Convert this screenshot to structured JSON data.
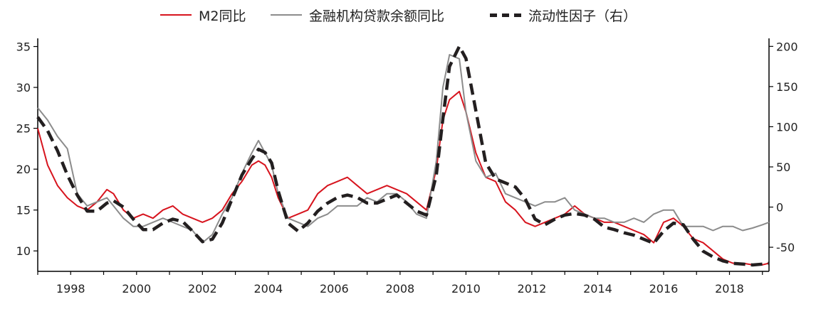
{
  "chart_data": {
    "type": "line",
    "title": "",
    "xlabel": "",
    "ylabel": "",
    "xlim": [
      1997.0,
      2019.2
    ],
    "ylim": [
      7.5,
      36
    ],
    "y2lim": [
      -80,
      210
    ],
    "x_ticks": [
      "1998",
      "2000",
      "2002",
      "2004",
      "2006",
      "2008",
      "2010",
      "2012",
      "2014",
      "2016",
      "2018"
    ],
    "y_ticks": [
      "10",
      "15",
      "20",
      "25",
      "30",
      "35"
    ],
    "y2_ticks": [
      "-50",
      "0",
      "50",
      "100",
      "150",
      "200"
    ],
    "legend_position": "top-center",
    "series": [
      {
        "name": "M2同比",
        "color": "#d7141e",
        "style": "solid",
        "axis": "left",
        "x": [
          1997.0,
          1997.3,
          1997.6,
          1997.9,
          1998.2,
          1998.5,
          1998.8,
          1999.1,
          1999.3,
          1999.6,
          1999.9,
          2000.2,
          2000.5,
          2000.8,
          2001.1,
          2001.4,
          2001.7,
          2002.0,
          2002.3,
          2002.6,
          2002.9,
          2003.2,
          2003.5,
          2003.7,
          2003.9,
          2004.1,
          2004.3,
          2004.6,
          2004.9,
          2005.2,
          2005.5,
          2005.8,
          2006.1,
          2006.4,
          2006.7,
          2007.0,
          2007.3,
          2007.6,
          2007.9,
          2008.2,
          2008.5,
          2008.8,
          2009.1,
          2009.3,
          2009.5,
          2009.8,
          2010.0,
          2010.3,
          2010.6,
          2010.9,
          2011.2,
          2011.5,
          2011.8,
          2012.1,
          2012.4,
          2012.7,
          2013.0,
          2013.3,
          2013.6,
          2013.9,
          2014.2,
          2014.5,
          2014.8,
          2015.1,
          2015.4,
          2015.7,
          2016.0,
          2016.3,
          2016.6,
          2016.9,
          2017.2,
          2017.5,
          2017.8,
          2018.1,
          2018.4,
          2018.7,
          2019.0,
          2019.2
        ],
        "y": [
          25.0,
          20.5,
          18.0,
          16.5,
          15.5,
          15.0,
          16.0,
          17.5,
          17.0,
          15.0,
          14.0,
          14.5,
          14.0,
          15.0,
          15.5,
          14.5,
          14.0,
          13.5,
          14.0,
          15.0,
          17.0,
          18.5,
          20.5,
          21.0,
          20.5,
          19.0,
          16.5,
          14.0,
          14.5,
          15.0,
          17.0,
          18.0,
          18.5,
          19.0,
          18.0,
          17.0,
          17.5,
          18.0,
          17.5,
          17.0,
          16.0,
          15.0,
          20.0,
          26.0,
          28.5,
          29.5,
          27.0,
          22.0,
          19.0,
          18.5,
          16.0,
          15.0,
          13.5,
          13.0,
          13.5,
          14.0,
          14.5,
          15.5,
          14.5,
          14.0,
          13.5,
          13.5,
          13.0,
          12.5,
          12.0,
          11.0,
          13.5,
          14.0,
          13.0,
          11.5,
          11.0,
          10.0,
          9.0,
          8.5,
          8.5,
          8.3,
          8.3,
          8.5
        ]
      },
      {
        "name": "金融机构贷款余额同比",
        "color": "#8c8c8c",
        "style": "solid",
        "axis": "left",
        "x": [
          1997.0,
          1997.3,
          1997.6,
          1997.9,
          1998.2,
          1998.5,
          1998.8,
          1999.1,
          1999.3,
          1999.6,
          1999.9,
          2000.2,
          2000.5,
          2000.8,
          2001.1,
          2001.4,
          2001.7,
          2002.0,
          2002.3,
          2002.6,
          2002.9,
          2003.2,
          2003.5,
          2003.7,
          2003.9,
          2004.1,
          2004.3,
          2004.6,
          2004.9,
          2005.2,
          2005.5,
          2005.8,
          2006.1,
          2006.4,
          2006.7,
          2007.0,
          2007.3,
          2007.6,
          2007.9,
          2008.2,
          2008.5,
          2008.8,
          2009.1,
          2009.3,
          2009.5,
          2009.8,
          2010.0,
          2010.3,
          2010.6,
          2010.9,
          2011.2,
          2011.5,
          2011.8,
          2012.1,
          2012.4,
          2012.7,
          2013.0,
          2013.3,
          2013.6,
          2013.9,
          2014.2,
          2014.5,
          2014.8,
          2015.1,
          2015.4,
          2015.7,
          2016.0,
          2016.3,
          2016.6,
          2016.9,
          2017.2,
          2017.5,
          2017.8,
          2018.1,
          2018.4,
          2018.7,
          2019.0,
          2019.2
        ],
        "y": [
          27.5,
          26.0,
          24.0,
          22.5,
          17.0,
          15.5,
          16.0,
          16.5,
          15.5,
          14.0,
          13.0,
          13.0,
          13.5,
          14.0,
          13.5,
          13.0,
          12.5,
          11.0,
          12.0,
          14.5,
          16.5,
          19.5,
          22.0,
          23.5,
          22.0,
          20.5,
          17.0,
          14.0,
          13.5,
          13.0,
          14.0,
          14.5,
          15.5,
          15.5,
          15.5,
          16.5,
          16.0,
          17.0,
          17.0,
          16.0,
          14.5,
          14.0,
          21.0,
          30.0,
          34.0,
          33.5,
          27.0,
          21.0,
          19.0,
          19.5,
          17.0,
          16.5,
          16.0,
          15.5,
          16.0,
          16.0,
          16.5,
          15.0,
          14.5,
          14.0,
          14.0,
          13.5,
          13.5,
          14.0,
          13.5,
          14.5,
          15.0,
          15.0,
          13.0,
          13.0,
          13.0,
          12.5,
          13.0,
          13.0,
          12.5,
          12.8,
          13.2,
          13.5
        ]
      },
      {
        "name": "流动性因子（右）",
        "color": "#231f20",
        "style": "dashed",
        "axis": "right",
        "x": [
          1997.0,
          1997.3,
          1997.6,
          1997.9,
          1998.2,
          1998.5,
          1998.8,
          1999.1,
          1999.3,
          1999.6,
          1999.9,
          2000.2,
          2000.5,
          2000.8,
          2001.1,
          2001.4,
          2001.7,
          2002.0,
          2002.3,
          2002.6,
          2002.9,
          2003.2,
          2003.5,
          2003.7,
          2003.9,
          2004.1,
          2004.3,
          2004.6,
          2004.9,
          2005.2,
          2005.5,
          2005.8,
          2006.1,
          2006.4,
          2006.7,
          2007.0,
          2007.3,
          2007.6,
          2007.9,
          2008.2,
          2008.5,
          2008.8,
          2009.1,
          2009.3,
          2009.5,
          2009.8,
          2010.0,
          2010.3,
          2010.6,
          2010.9,
          2011.2,
          2011.5,
          2011.8,
          2012.1,
          2012.4,
          2012.7,
          2013.0,
          2013.3,
          2013.6,
          2013.9,
          2014.2,
          2014.5,
          2014.8,
          2015.1,
          2015.4,
          2015.7,
          2016.0,
          2016.3,
          2016.6,
          2016.9,
          2017.2,
          2017.5,
          2017.8,
          2018.1,
          2018.4,
          2018.7,
          2019.0,
          2019.2
        ],
        "y": [
          112,
          95,
          70,
          40,
          15,
          -5,
          -5,
          5,
          8,
          0,
          -15,
          -28,
          -28,
          -20,
          -15,
          -18,
          -30,
          -43,
          -40,
          -20,
          10,
          40,
          60,
          72,
          68,
          55,
          20,
          -20,
          -30,
          -20,
          -5,
          5,
          12,
          15,
          12,
          5,
          5,
          10,
          15,
          5,
          -5,
          -10,
          40,
          110,
          175,
          200,
          185,
          120,
          55,
          35,
          30,
          25,
          10,
          -15,
          -22,
          -15,
          -10,
          -8,
          -10,
          -15,
          -25,
          -28,
          -32,
          -35,
          -40,
          -45,
          -30,
          -20,
          -22,
          -40,
          -55,
          -62,
          -67,
          -70,
          -71,
          -72,
          -71,
          -70
        ]
      }
    ]
  }
}
